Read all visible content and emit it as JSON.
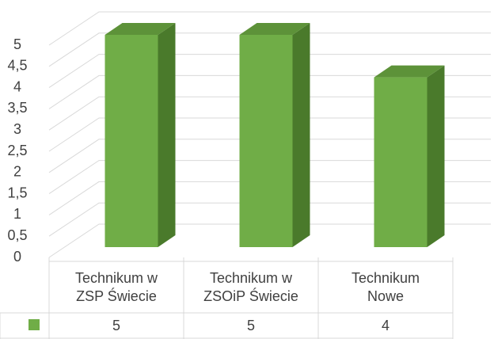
{
  "chart_data": {
    "type": "bar3d",
    "categories": [
      "Technikum w\nZSP Świecie",
      "Technikum w\nZSOiP Świecie",
      "Technikum\nNowe"
    ],
    "series": [
      {
        "color": "#70ad47",
        "values": [
          5,
          5,
          4
        ]
      }
    ],
    "ylim": [
      0,
      5
    ],
    "yticks": [
      0,
      {
        "value": 0.5,
        "label": "0,5"
      },
      1,
      {
        "value": 1.5,
        "label": "1,5"
      },
      2,
      {
        "value": 2.5,
        "label": "2,5"
      },
      3,
      {
        "value": 3.5,
        "label": "3,5"
      },
      4,
      {
        "value": 4.5,
        "label": "4,5"
      },
      5
    ],
    "grid": true
  }
}
